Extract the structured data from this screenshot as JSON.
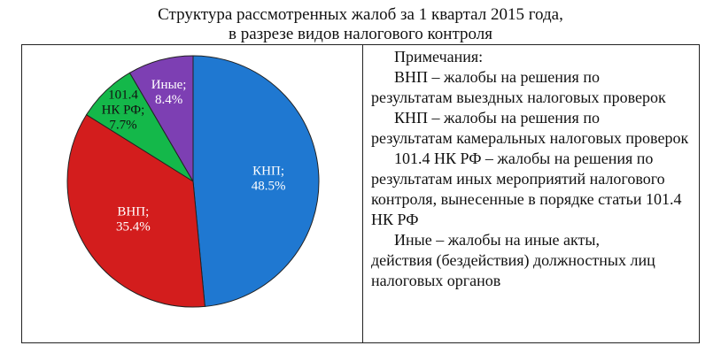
{
  "title": {
    "line1": "Структура рассмотренных жалоб за 1 квартал 2015 года,",
    "line2": "в разрезе видов налогового контроля"
  },
  "notes": {
    "header": "Примечания:",
    "items": [
      {
        "first": "ВНП – жалобы на решения по",
        "rest": "результатам выездных налоговых проверок"
      },
      {
        "first": "КНП – жалобы на решения по",
        "rest": "результатам камеральных налоговых проверок"
      },
      {
        "first": "101.4 НК РФ – жалобы на решения по",
        "rest": "результатам иных мероприятий налогового контроля, вынесенные в порядке статьи 101.4 НК РФ"
      },
      {
        "first": "Иные – жалобы на иные акты,",
        "rest": "действия (бездействия) должностных лиц налоговых органов"
      }
    ]
  },
  "chart_data": {
    "type": "pie",
    "start": "12 o'clock",
    "direction": "clockwise",
    "slices": [
      {
        "label_lines": [
          "КНП;",
          "48.5%"
        ],
        "value": 48.5,
        "color": "#1f78d1",
        "label_color": "#ffffff"
      },
      {
        "label_lines": [
          "ВНП;",
          "35.4%"
        ],
        "value": 35.4,
        "color": "#d31d1d",
        "label_color": "#ffffff"
      },
      {
        "label_lines": [
          "101.4",
          "НК РФ;",
          "7.7%"
        ],
        "value": 7.7,
        "color": "#14b84a",
        "label_color": "#111111"
      },
      {
        "label_lines": [
          "Иные;",
          "8.4%"
        ],
        "value": 8.4,
        "color": "#7d3fb3",
        "label_color": "#ffffff"
      }
    ]
  }
}
